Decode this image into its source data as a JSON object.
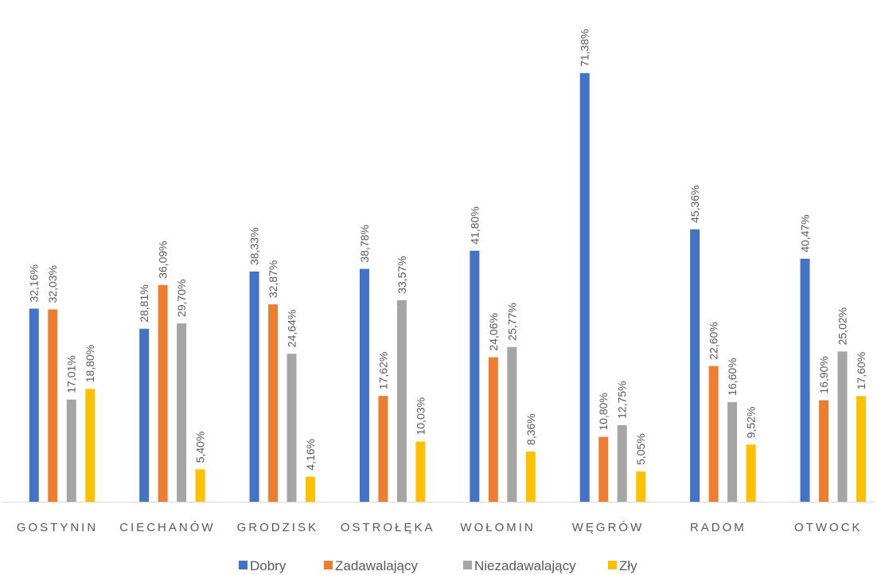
{
  "chart_data": {
    "type": "bar",
    "categories": [
      "GOSTYNIN",
      "CIECHANÓW",
      "GRODZISK",
      "OSTROŁĘKA",
      "WOŁOMIN",
      "WĘGRÓW",
      "RADOM",
      "OTWOCK"
    ],
    "series": [
      {
        "name": "Dobry",
        "color": "#4472c4",
        "values": [
          32.16,
          28.81,
          38.33,
          38.78,
          41.8,
          71.38,
          45.36,
          40.47
        ],
        "value_labels": [
          "32,16%",
          "28,81%",
          "38,33%",
          "38,78%",
          "41,80%",
          "71,38%",
          "45,36%",
          "40,47%"
        ]
      },
      {
        "name": "Zadawalający",
        "color": "#ed7d31",
        "values": [
          32.03,
          36.09,
          32.87,
          17.62,
          24.06,
          10.8,
          22.6,
          16.9
        ],
        "value_labels": [
          "32,03%",
          "36,09%",
          "32,87%",
          "17,62%",
          "24,06%",
          "10,80%",
          "22,60%",
          "16,90%"
        ]
      },
      {
        "name": "Niezadawalający",
        "color": "#a5a5a5",
        "values": [
          17.01,
          29.7,
          24.64,
          33.57,
          25.77,
          12.75,
          16.6,
          25.02
        ],
        "value_labels": [
          "17,01%",
          "29,70%",
          "24,64%",
          "33,57%",
          "25,77%",
          "12,75%",
          "16,60%",
          "25,02%"
        ]
      },
      {
        "name": "Zły",
        "color": "#ffc000",
        "values": [
          18.8,
          5.4,
          4.16,
          10.03,
          8.36,
          5.05,
          9.52,
          17.6
        ],
        "value_labels": [
          "18,80%",
          "5,40%",
          "4,16%",
          "10,03%",
          "8,36%",
          "5,05%",
          "9,52%",
          "17,60%"
        ]
      }
    ],
    "legend": "bottom"
  }
}
